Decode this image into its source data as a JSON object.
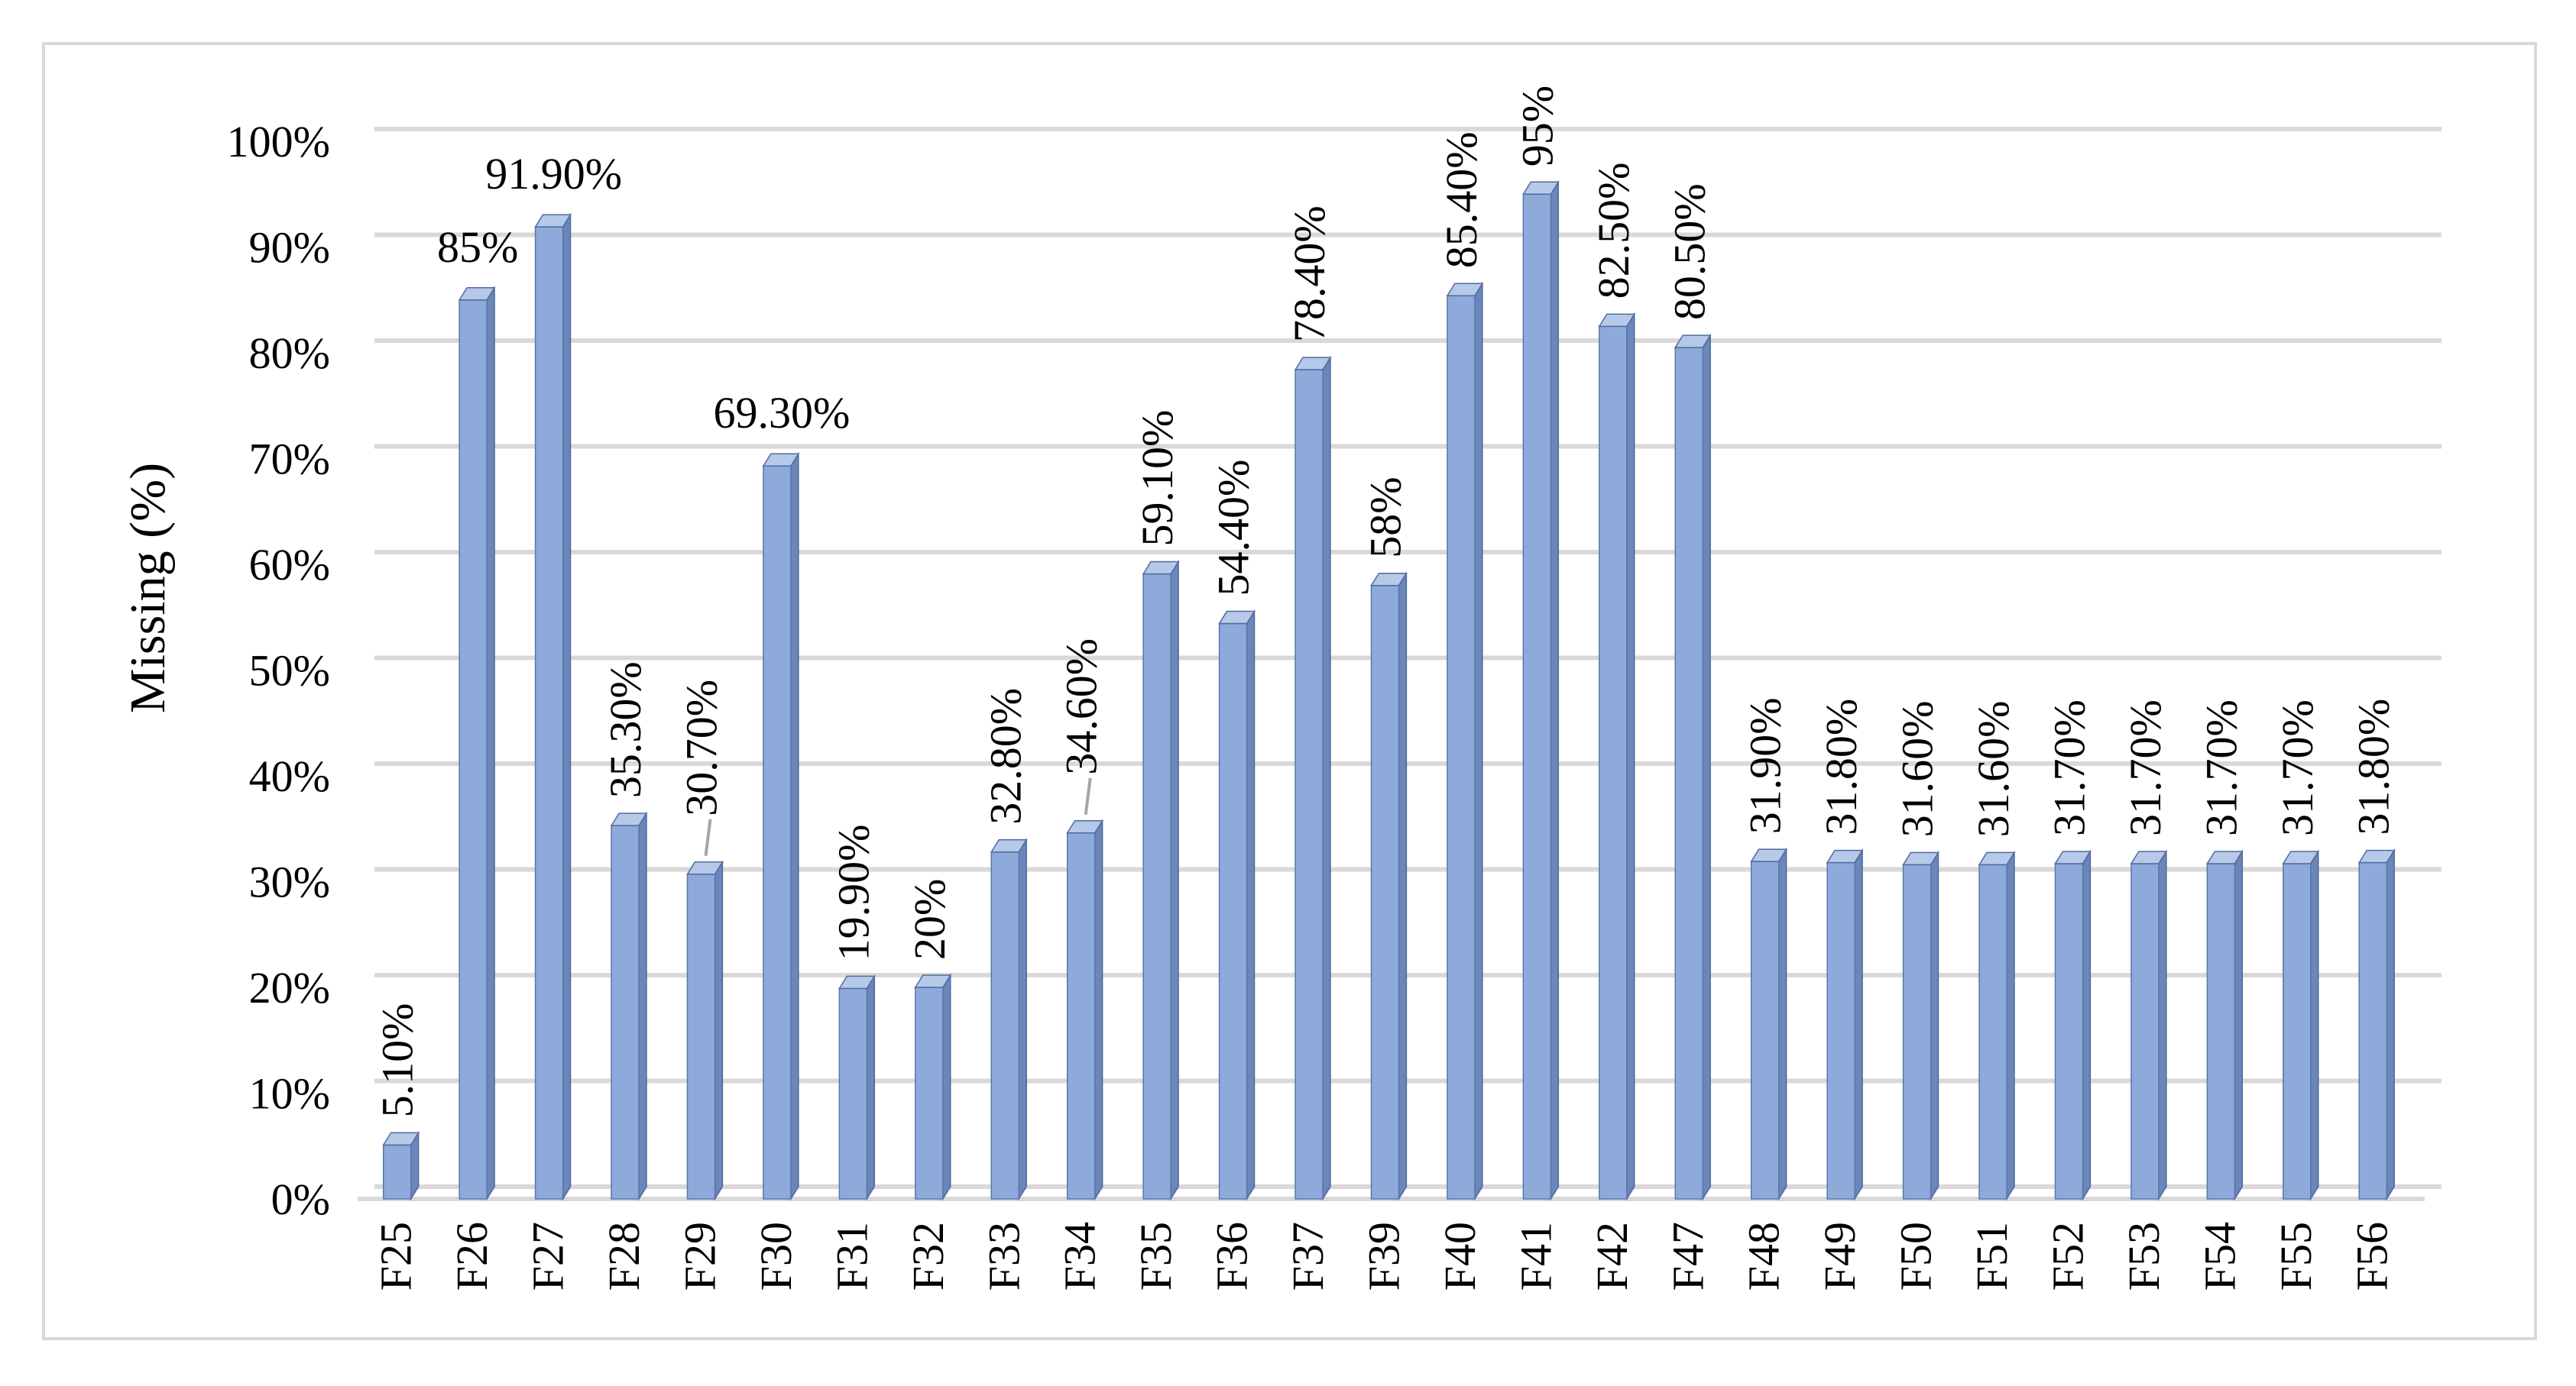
{
  "chart_data": {
    "type": "bar",
    "title": "",
    "xlabel": "",
    "ylabel": "Missing (%)",
    "ylim": [
      0,
      100
    ],
    "yticks": [
      "0%",
      "10%",
      "20%",
      "30%",
      "40%",
      "50%",
      "60%",
      "70%",
      "80%",
      "90%",
      "100%"
    ],
    "grid": true,
    "legend": "none",
    "categories": [
      "F25",
      "F26",
      "F27",
      "F28",
      "F29",
      "F30",
      "F31",
      "F32",
      "F33",
      "F34",
      "F35",
      "F36",
      "F37",
      "F39",
      "F40",
      "F41",
      "F42",
      "F47",
      "F48",
      "F49",
      "F50",
      "F51",
      "F52",
      "F53",
      "F54",
      "F55",
      "F56"
    ],
    "values": [
      5.1,
      85,
      91.9,
      35.3,
      30.7,
      69.3,
      19.9,
      20,
      32.8,
      34.6,
      59.1,
      54.4,
      78.4,
      58,
      85.4,
      95,
      82.5,
      80.5,
      31.9,
      31.8,
      31.6,
      31.6,
      31.7,
      31.7,
      31.7,
      31.7,
      31.8
    ],
    "data_labels": [
      "5.10%",
      "85%",
      "91.90%",
      "35.30%",
      "30.70%",
      "69.30%",
      "19.90%",
      "20%",
      "32.80%",
      "34.60%",
      "59.10%",
      "54.40%",
      "78.40%",
      "58%",
      "85.40%",
      "95%",
      "82.50%",
      "80.50%",
      "31.90%",
      "31.80%",
      "31.60%",
      "31.60%",
      "31.70%",
      "31.70%",
      "31.70%",
      "31.70%",
      "31.80%"
    ],
    "label_orientation": [
      "vertical",
      "horizontal",
      "horizontal",
      "vertical",
      "vertical",
      "horizontal",
      "vertical",
      "vertical",
      "vertical",
      "vertical",
      "vertical",
      "vertical",
      "vertical",
      "vertical",
      "vertical",
      "vertical",
      "vertical",
      "vertical",
      "vertical",
      "vertical",
      "vertical",
      "vertical",
      "vertical",
      "vertical",
      "vertical",
      "vertical",
      "vertical"
    ],
    "colors": {
      "bar_front": "#8eaadb",
      "bar_side": "#6b86ba",
      "bar_top": "#b7c9e8",
      "gridline": "#d9d9d9",
      "frame": "#d9d9d9",
      "leader_line": "#a6a6a6"
    }
  }
}
